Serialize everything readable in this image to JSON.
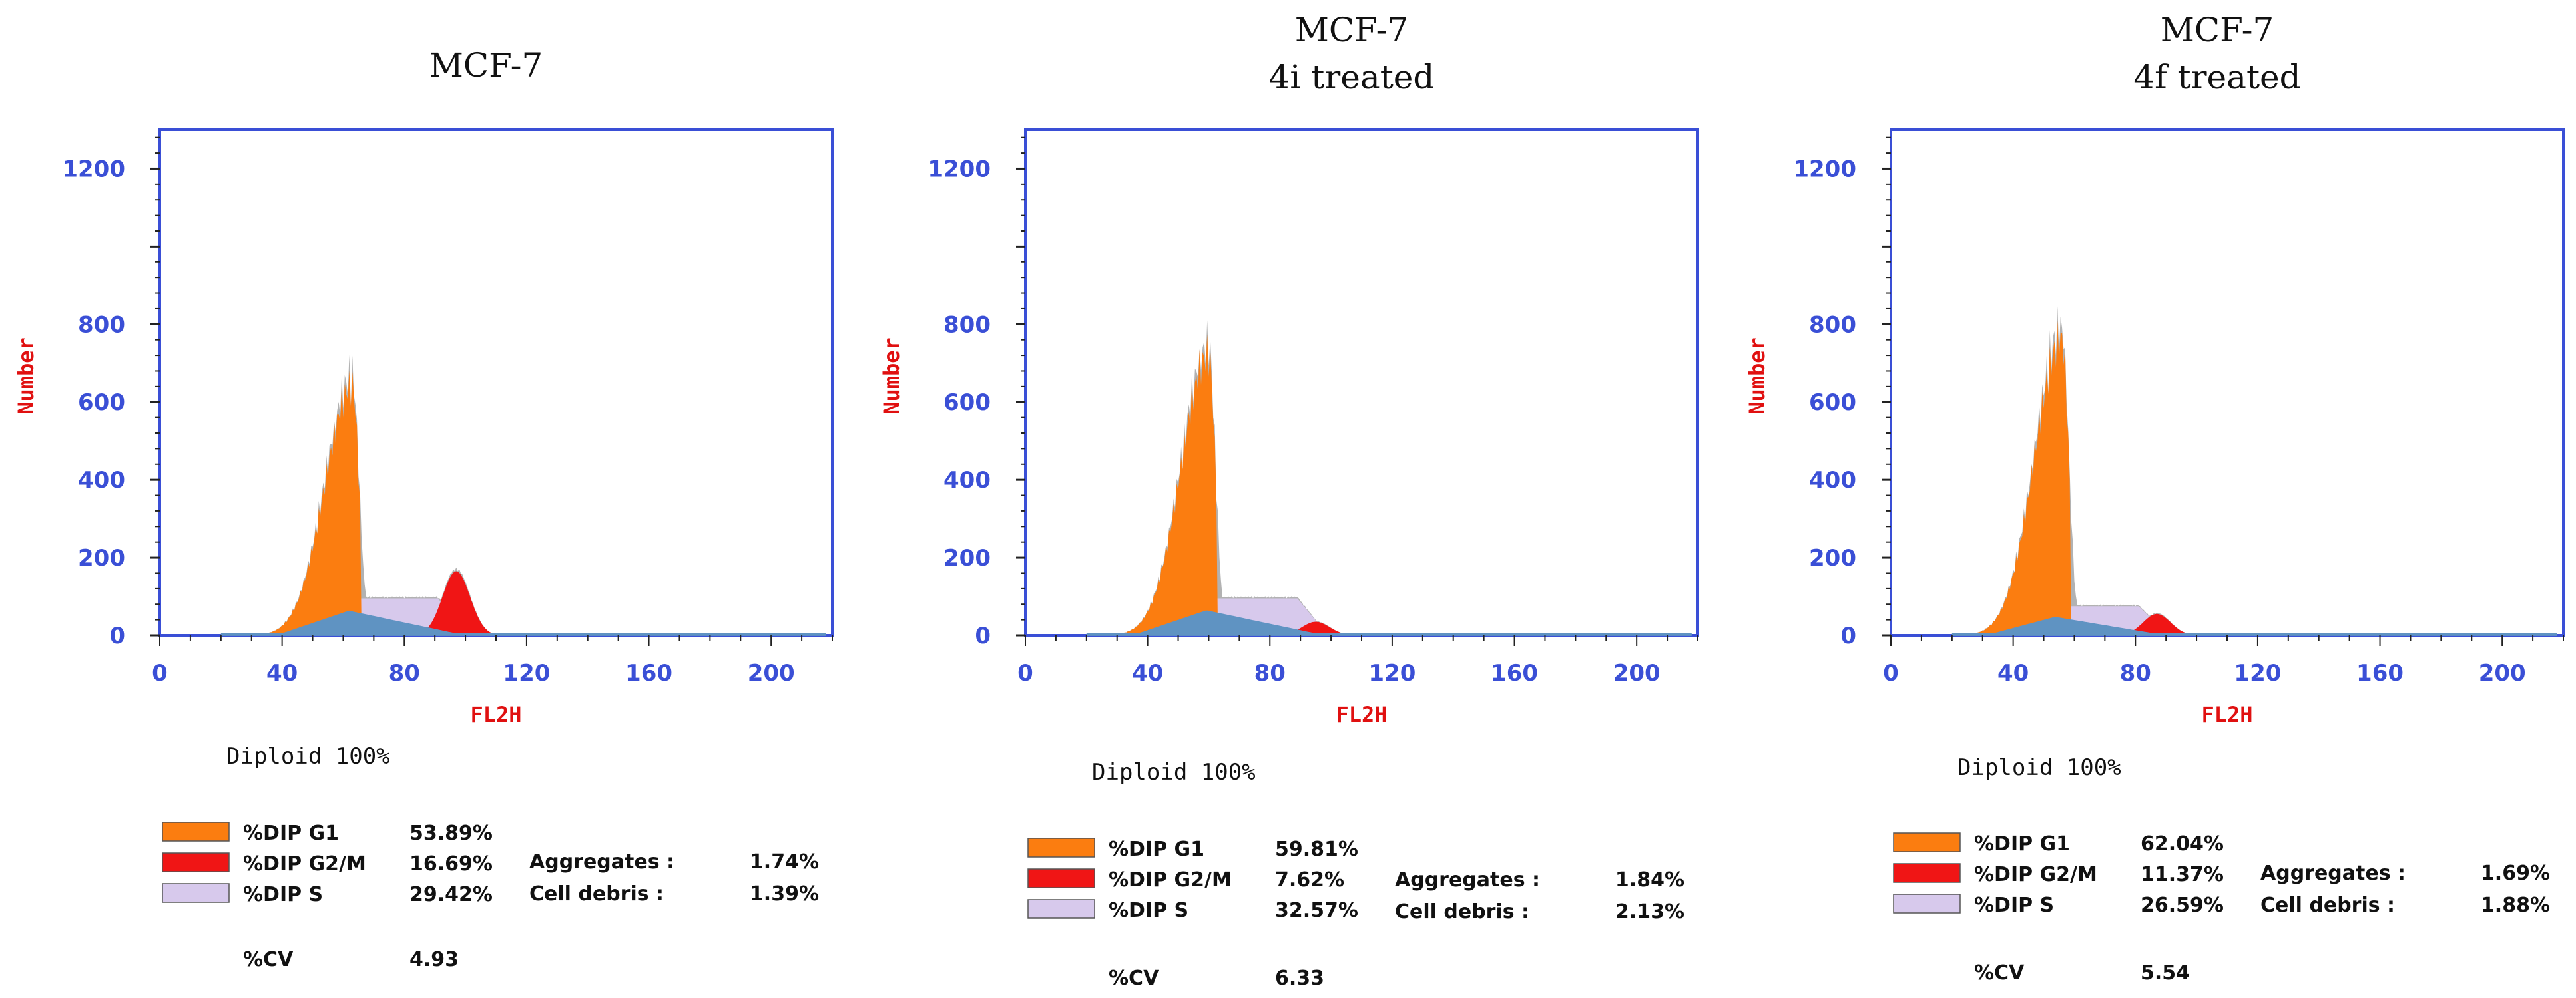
{
  "colors": {
    "g1": "#fb7d10",
    "g2m": "#f01515",
    "s": "#d7c9ec",
    "sBlue": "#5f93c2",
    "gray": "#b2b2b2",
    "axis": "#3a4fd6",
    "axisLabel": "#e01010"
  },
  "chart_data": [
    {
      "type": "histogram",
      "title": [
        "MCF-7"
      ],
      "xlabel": "FL2H",
      "ylabel": "Number",
      "xlim": [
        0,
        220
      ],
      "ylim": [
        0,
        1300
      ],
      "xticks": [
        "0",
        "40",
        "80",
        "120",
        "160",
        "200"
      ],
      "yticks": [
        "0",
        "200",
        "400",
        "600",
        "800",
        "1200"
      ],
      "peak": {
        "g1_center": 63,
        "g1_height": 640,
        "g2_center": 97,
        "g2_height": 165,
        "s_height": 95
      },
      "diploid": "Diploid 100%",
      "legend": [
        {
          "label": "%DIP G1",
          "value": "53.89%",
          "swatch": "g1"
        },
        {
          "label": "%DIP G2/M",
          "value": "16.69%",
          "swatch": "g2m"
        },
        {
          "label": "%DIP S",
          "value": "29.42%",
          "swatch": "s"
        }
      ],
      "cv_label": "%CV",
      "cv_value": "4.93",
      "aggregates_label": "Aggregates :",
      "aggregates_value": "1.74%",
      "debris_label": "Cell debris :",
      "debris_value": "1.39%"
    },
    {
      "type": "histogram",
      "title": [
        "MCF-7",
        "4i treated"
      ],
      "xlabel": "FL2H",
      "ylabel": "Number",
      "xlim": [
        0,
        220
      ],
      "ylim": [
        0,
        1300
      ],
      "xticks": [
        "0",
        "40",
        "80",
        "120",
        "160",
        "200"
      ],
      "yticks": [
        "0",
        "200",
        "400",
        "600",
        "800",
        "1200"
      ],
      "peak": {
        "g1_center": 60,
        "g1_height": 720,
        "g2_center": 95,
        "g2_height": 35,
        "s_height": 95
      },
      "diploid": "Diploid 100%",
      "legend": [
        {
          "label": "%DIP G1",
          "value": "59.81%",
          "swatch": "g1"
        },
        {
          "label": "%DIP G2/M",
          "value": "7.62%",
          "swatch": "g2m"
        },
        {
          "label": "%DIP S",
          "value": "32.57%",
          "swatch": "s"
        }
      ],
      "cv_label": "%CV",
      "cv_value": "6.33",
      "aggregates_label": "Aggregates :",
      "aggregates_value": "1.84%",
      "debris_label": "Cell debris :",
      "debris_value": "2.13%"
    },
    {
      "type": "histogram",
      "title": [
        "MCF-7",
        "4f treated"
      ],
      "xlabel": "FL2H",
      "ylabel": "Number",
      "xlim": [
        0,
        220
      ],
      "ylim": [
        0,
        1300
      ],
      "xticks": [
        "0",
        "40",
        "80",
        "120",
        "160",
        "200"
      ],
      "yticks": [
        "0",
        "200",
        "400",
        "600",
        "800",
        "1200"
      ],
      "peak": {
        "g1_center": 56,
        "g1_height": 760,
        "g2_center": 87,
        "g2_height": 55,
        "s_height": 75
      },
      "diploid": "Diploid 100%",
      "legend": [
        {
          "label": "%DIP G1",
          "value": "62.04%",
          "swatch": "g1"
        },
        {
          "label": "%DIP G2/M",
          "value": "11.37%",
          "swatch": "g2m"
        },
        {
          "label": "%DIP S",
          "value": "26.59%",
          "swatch": "s"
        }
      ],
      "cv_label": "%CV",
      "cv_value": "5.54",
      "aggregates_label": "Aggregates :",
      "aggregates_value": "1.69%",
      "debris_label": "Cell debris :",
      "debris_value": "1.88%"
    }
  ]
}
